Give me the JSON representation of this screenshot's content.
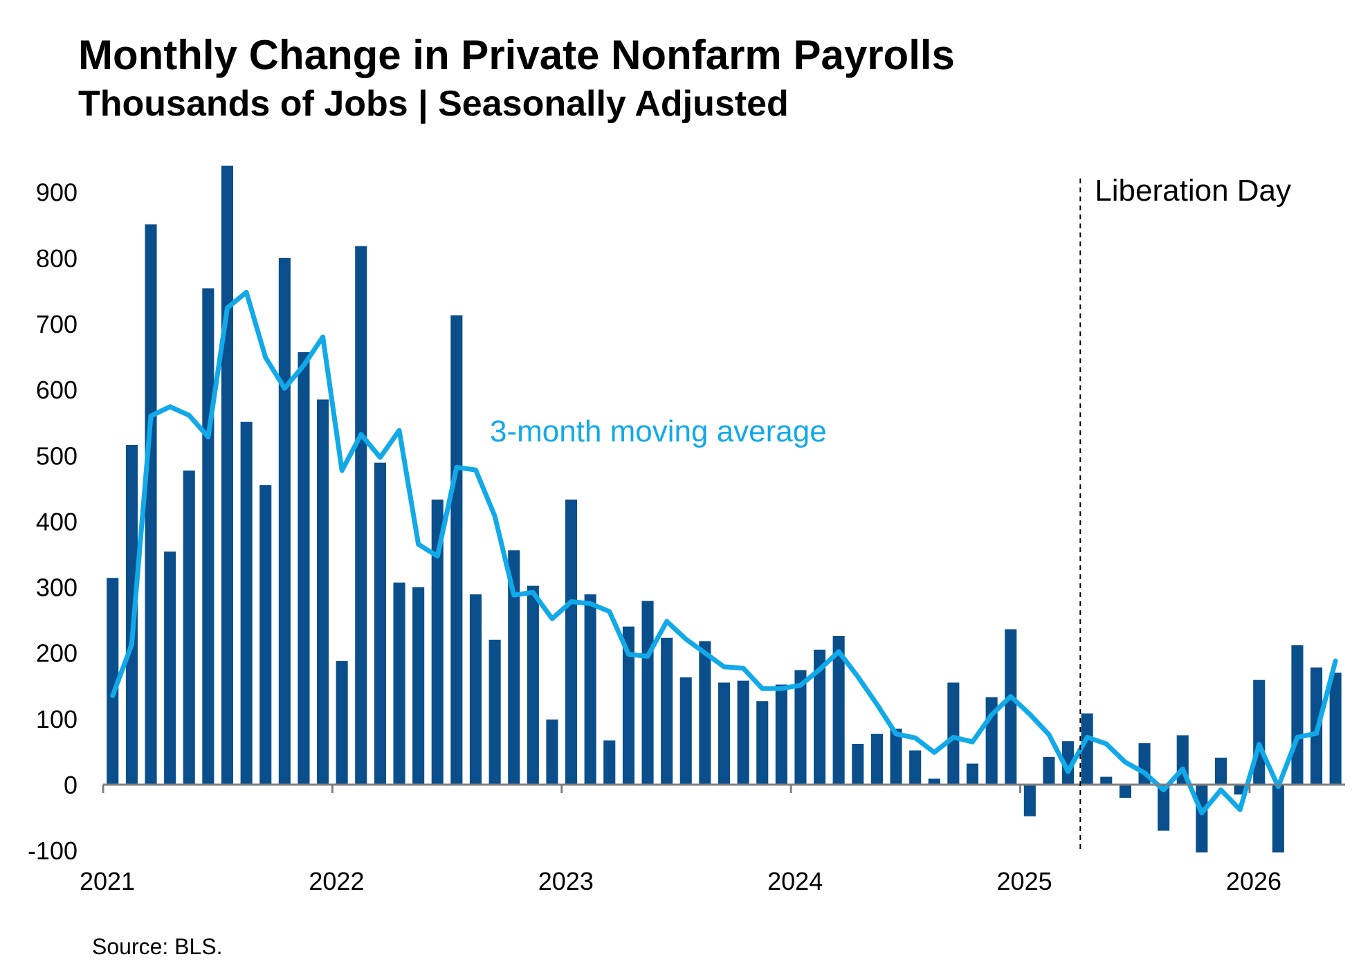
{
  "title": "Monthly Change in Private Nonfarm Payrolls",
  "subtitle": "Thousands of Jobs | Seasonally Adjusted",
  "source": "Source: BLS.",
  "colors": {
    "bars": "#0A4F8C",
    "moving_average": "#12A9E9",
    "axis": "#7F7F7F",
    "text": "#000000"
  },
  "chart_data": {
    "type": "bar",
    "title": "Monthly Change in Private Nonfarm Payrolls",
    "subtitle": "Thousands of Jobs | Seasonally Adjusted",
    "xlabel": "",
    "ylabel": "",
    "ylim": [
      -100,
      940
    ],
    "y_ticks": [
      -100,
      0,
      100,
      200,
      300,
      400,
      500,
      600,
      700,
      800,
      900
    ],
    "x_tick_labels": [
      "2021",
      "2022",
      "2023",
      "2024",
      "2025",
      "2026"
    ],
    "grid": false,
    "x": [
      "2021-01",
      "2021-02",
      "2021-03",
      "2021-04",
      "2021-05",
      "2021-06",
      "2021-07",
      "2021-08",
      "2021-09",
      "2021-10",
      "2021-11",
      "2021-12",
      "2022-01",
      "2022-02",
      "2022-03",
      "2022-04",
      "2022-05",
      "2022-06",
      "2022-07",
      "2022-08",
      "2022-09",
      "2022-10",
      "2022-11",
      "2022-12",
      "2023-01",
      "2023-02",
      "2023-03",
      "2023-04",
      "2023-05",
      "2023-06",
      "2023-07",
      "2023-08",
      "2023-09",
      "2023-10",
      "2023-11",
      "2023-12",
      "2024-01",
      "2024-02",
      "2024-03",
      "2024-04",
      "2024-05",
      "2024-06",
      "2024-07",
      "2024-08",
      "2024-09",
      "2024-10",
      "2024-11",
      "2024-12",
      "2025-01",
      "2025-02",
      "2025-03",
      "2025-04",
      "2025-05",
      "2025-06",
      "2025-07",
      "2025-08",
      "2025-09",
      "2025-10",
      "2025-11",
      "2025-12",
      "2026-01",
      "2026-02",
      "2026-03",
      "2026-04",
      "2026-05"
    ],
    "series": [
      {
        "name": "",
        "type": "bar",
        "values": [
          314,
          516,
          851,
          354,
          477,
          754,
          940,
          551,
          455,
          800,
          657,
          585,
          188,
          818,
          489,
          307,
          300,
          433,
          713,
          289,
          220,
          356,
          302,
          99,
          433,
          289,
          67,
          240,
          279,
          223,
          163,
          218,
          155,
          158,
          127,
          152,
          174,
          205,
          226,
          62,
          77,
          85,
          52,
          9,
          155,
          32,
          133,
          236,
          -48,
          42,
          66,
          108,
          12,
          -20,
          63,
          -70,
          75,
          -103,
          41,
          -15,
          159,
          -103,
          212,
          178,
          170
        ]
      },
      {
        "name": "3-month moving average",
        "type": "line",
        "values": [
          135,
          213,
          560,
          574,
          561,
          528,
          724,
          748,
          649,
          602,
          637,
          680,
          477,
          532,
          497,
          538,
          365,
          347,
          482,
          478,
          408,
          288,
          292,
          252,
          278,
          275,
          263,
          198,
          195,
          248,
          221,
          200,
          179,
          177,
          146,
          146,
          151,
          175,
          202,
          164,
          122,
          77,
          71,
          49,
          72,
          65,
          106,
          134,
          107,
          76,
          20,
          72,
          62,
          34,
          18,
          -8,
          24,
          -43,
          -8,
          -38,
          61,
          -3,
          72,
          78,
          188
        ]
      }
    ],
    "annotations": [
      {
        "text": "3-month moving average"
      },
      {
        "text": "Liberation Day",
        "x": "2025-04",
        "style": "dashed vertical line"
      }
    ]
  }
}
